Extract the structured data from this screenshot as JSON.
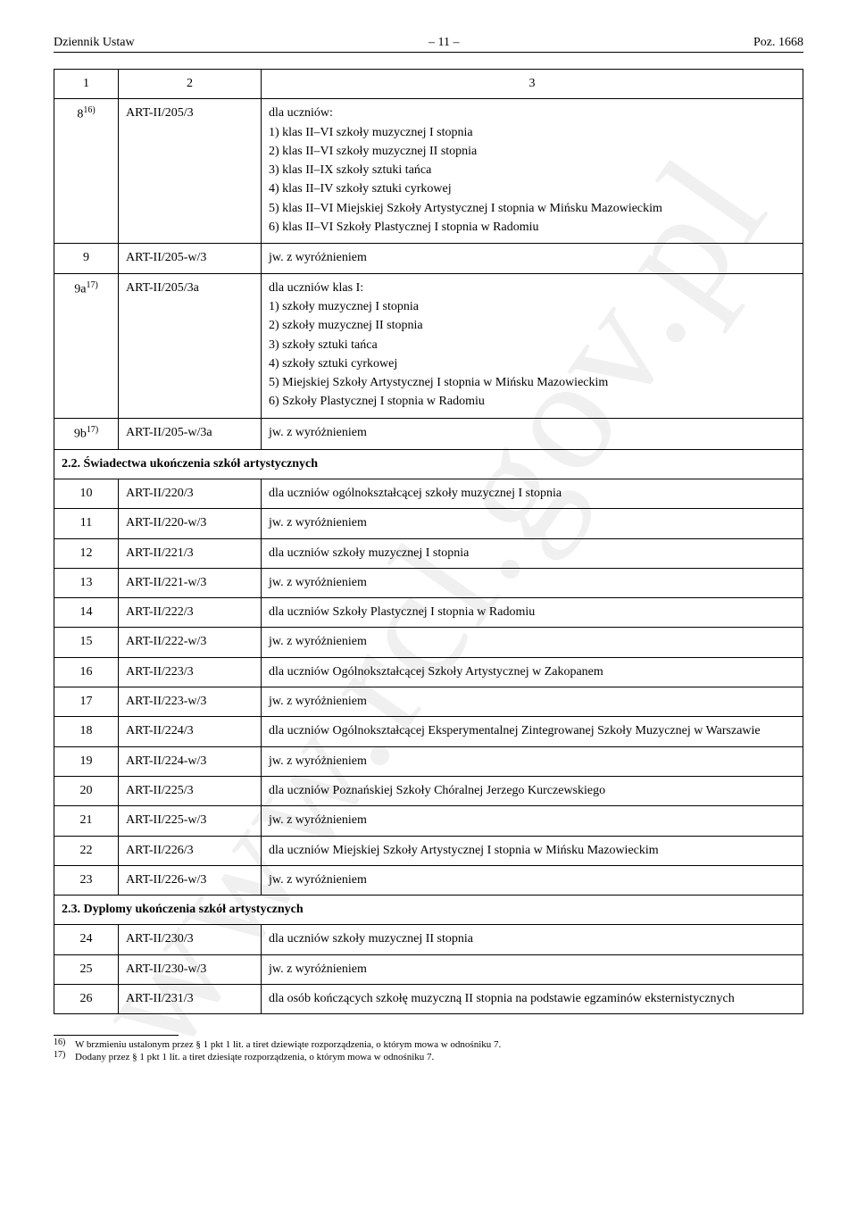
{
  "header": {
    "left": "Dziennik Ustaw",
    "center": "– 11 –",
    "right": "Poz. 1668"
  },
  "watermark": "www.rcl.gov.pl",
  "table_header": {
    "c1": "1",
    "c2": "2",
    "c3": "3"
  },
  "rows": [
    {
      "c1": "8",
      "c1_sup": "16)",
      "c2": "ART-II/205/3",
      "c3_intro": "dla uczniów:",
      "c3_list": [
        "1)   klas II–VI szkoły muzycznej I stopnia",
        "2)   klas II–VI szkoły muzycznej II stopnia",
        "3)   klas II–IX szkoły sztuki tańca",
        "4)   klas II–IV szkoły sztuki cyrkowej",
        "5)   klas II–VI Miejskiej Szkoły Artystycznej I stopnia w Mińsku Mazowieckim",
        "6)   klas II–VI Szkoły Plastycznej I stopnia w Radomiu"
      ]
    },
    {
      "c1": "9",
      "c2": "ART-II/205-w/3",
      "c3": "jw. z wyróżnieniem"
    },
    {
      "c1": "9a",
      "c1_sup": "17)",
      "c2": "ART-II/205/3a",
      "c3_intro": "dla uczniów klas I:",
      "c3_list": [
        "1)   szkoły muzycznej I stopnia",
        "2)   szkoły muzycznej II stopnia",
        "3)   szkoły sztuki tańca",
        "4)   szkoły sztuki cyrkowej",
        "5)   Miejskiej Szkoły Artystycznej I stopnia w Mińsku Mazowieckim",
        "6)   Szkoły Plastycznej I stopnia w Radomiu"
      ]
    },
    {
      "c1": "9b",
      "c1_sup": "17)",
      "c2": "ART-II/205-w/3a",
      "c3": "jw. z wyróżnieniem"
    },
    {
      "section": "2.2. Świadectwa ukończenia szkół artystycznych"
    },
    {
      "c1": "10",
      "c2": "ART-II/220/3",
      "c3": "dla uczniów ogólnokształcącej szkoły muzycznej I stopnia"
    },
    {
      "c1": "11",
      "c2": "ART-II/220-w/3",
      "c3": "jw. z wyróżnieniem"
    },
    {
      "c1": "12",
      "c2": "ART-II/221/3",
      "c3": "dla uczniów szkoły muzycznej I stopnia"
    },
    {
      "c1": "13",
      "c2": "ART-II/221-w/3",
      "c3": "jw. z wyróżnieniem"
    },
    {
      "c1": "14",
      "c2": "ART-II/222/3",
      "c3": "dla uczniów Szkoły Plastycznej I stopnia w Radomiu"
    },
    {
      "c1": "15",
      "c2": "ART-II/222-w/3",
      "c3": "jw. z wyróżnieniem"
    },
    {
      "c1": "16",
      "c2": "ART-II/223/3",
      "c3": "dla uczniów Ogólnokształcącej Szkoły Artystycznej w Zakopanem"
    },
    {
      "c1": "17",
      "c2": "ART-II/223-w/3",
      "c3": "jw. z wyróżnieniem"
    },
    {
      "c1": "18",
      "c2": "ART-II/224/3",
      "c3": "dla uczniów Ogólnokształcącej Eksperymentalnej Zintegrowanej Szkoły Muzycznej w Warszawie"
    },
    {
      "c1": "19",
      "c2": "ART-II/224-w/3",
      "c3": "jw. z wyróżnieniem"
    },
    {
      "c1": "20",
      "c2": "ART-II/225/3",
      "c3": "dla uczniów Poznańskiej Szkoły Chóralnej Jerzego Kurczewskiego"
    },
    {
      "c1": "21",
      "c2": "ART-II/225-w/3",
      "c3": "jw. z wyróżnieniem"
    },
    {
      "c1": "22",
      "c2": "ART-II/226/3",
      "c3": "dla uczniów Miejskiej Szkoły Artystycznej I stopnia w Mińsku Mazowieckim"
    },
    {
      "c1": "23",
      "c2": "ART-II/226-w/3",
      "c3": "jw. z wyróżnieniem"
    },
    {
      "section": "2.3. Dyplomy ukończenia szkół artystycznych"
    },
    {
      "c1": "24",
      "c2": "ART-II/230/3",
      "c3": "dla uczniów szkoły muzycznej II stopnia"
    },
    {
      "c1": "25",
      "c2": "ART-II/230-w/3",
      "c3": "jw. z wyróżnieniem"
    },
    {
      "c1": "26",
      "c2": "ART-II/231/3",
      "c3": "dla osób kończących szkołę muzyczną II stopnia na podstawie egzaminów eksternistycznych"
    }
  ],
  "footnotes": [
    {
      "num": "16)",
      "text": "W brzmieniu ustalonym przez § 1 pkt 1 lit. a tiret dziewiąte rozporządzenia, o którym mowa w odnośniku 7."
    },
    {
      "num": "17)",
      "text": "Dodany przez § 1 pkt 1 lit. a tiret dziesiąte rozporządzenia, o którym mowa w odnośniku 7."
    }
  ]
}
